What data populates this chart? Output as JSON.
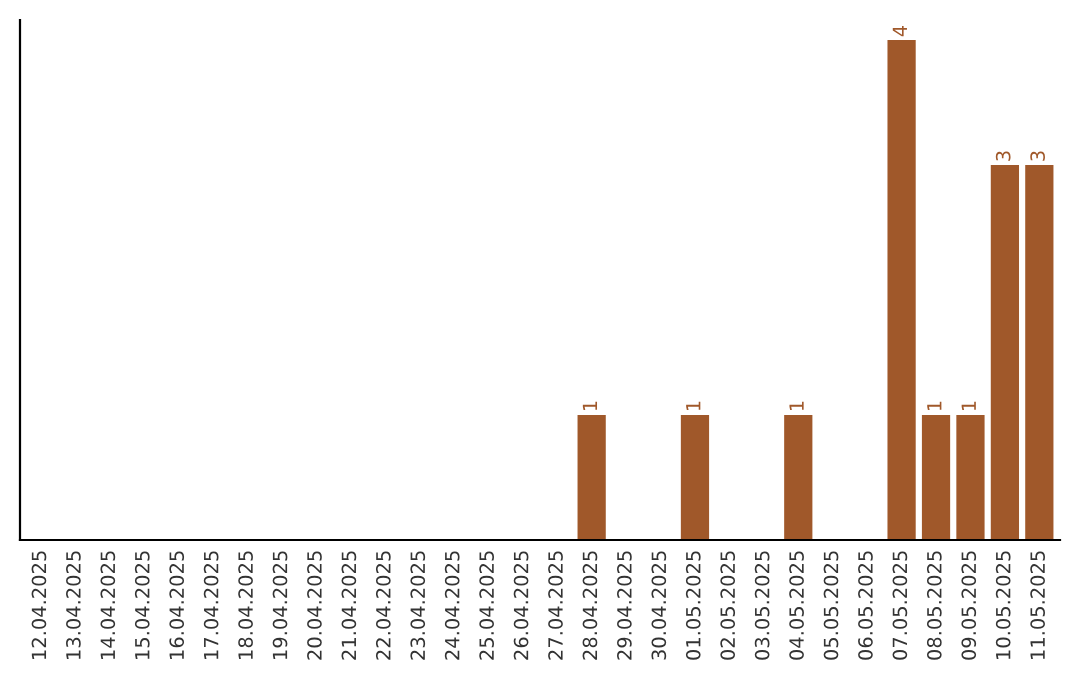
{
  "chart_data": {
    "type": "bar",
    "categories": [
      "12.04.2025",
      "13.04.2025",
      "14.04.2025",
      "15.04.2025",
      "16.04.2025",
      "17.04.2025",
      "18.04.2025",
      "19.04.2025",
      "20.04.2025",
      "21.04.2025",
      "22.04.2025",
      "23.04.2025",
      "24.04.2025",
      "25.04.2025",
      "26.04.2025",
      "27.04.2025",
      "28.04.2025",
      "29.04.2025",
      "30.04.2025",
      "01.05.2025",
      "02.05.2025",
      "03.05.2025",
      "04.05.2025",
      "05.05.2025",
      "06.05.2025",
      "07.05.2025",
      "08.05.2025",
      "09.05.2025",
      "10.05.2025",
      "11.05.2025"
    ],
    "values": [
      null,
      null,
      null,
      null,
      null,
      null,
      null,
      null,
      null,
      null,
      null,
      null,
      null,
      null,
      null,
      null,
      1,
      null,
      null,
      1,
      null,
      null,
      1,
      null,
      null,
      4,
      1,
      1,
      3,
      3
    ],
    "value_labels": [
      null,
      null,
      null,
      null,
      null,
      null,
      null,
      null,
      null,
      null,
      null,
      null,
      null,
      null,
      null,
      null,
      "1",
      null,
      null,
      "1",
      null,
      null,
      "1",
      null,
      null,
      "4",
      "1",
      "1",
      "3",
      "3"
    ],
    "color": "#a0582a",
    "tick_labels": "x",
    "grid": false,
    "legend": false
  }
}
